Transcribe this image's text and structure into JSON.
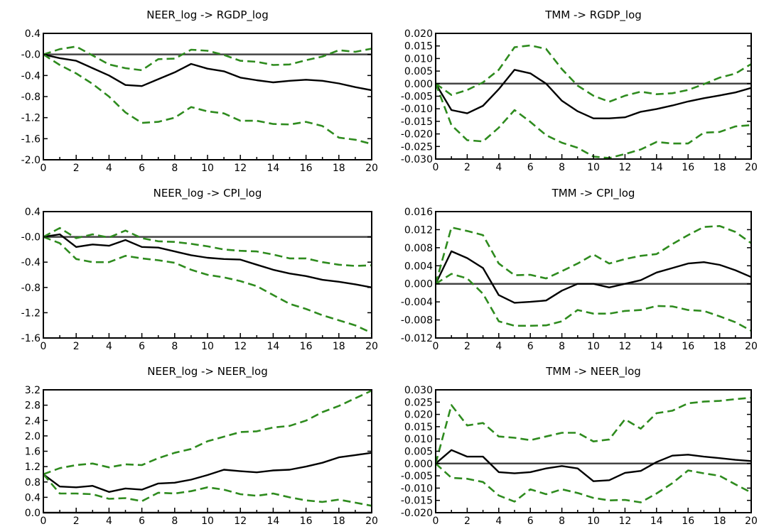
{
  "chart_data": [
    {
      "type": "line",
      "title": "NEER_log  -> RGDP_log",
      "x": [
        0,
        1,
        2,
        3,
        4,
        5,
        6,
        7,
        8,
        9,
        10,
        11,
        12,
        13,
        14,
        15,
        16,
        17,
        18,
        19,
        20
      ],
      "xticks": [
        "0",
        "2",
        "4",
        "6",
        "8",
        "10",
        "12",
        "14",
        "16",
        "18",
        "20"
      ],
      "ylim": [
        -2.0,
        0.4
      ],
      "yticks": [
        "0.4",
        "-0.0",
        "-0.4",
        "-0.8",
        "-1.2",
        "-1.6",
        "-2.0"
      ],
      "ytick_values": [
        0.4,
        0,
        -0.4,
        -0.8,
        -1.2,
        -1.6,
        -2.0
      ],
      "series": [
        {
          "role": "response",
          "values": [
            0.0,
            -0.07,
            -0.12,
            -0.26,
            -0.4,
            -0.58,
            -0.6,
            -0.47,
            -0.34,
            -0.18,
            -0.27,
            -0.32,
            -0.44,
            -0.49,
            -0.53,
            -0.5,
            -0.48,
            -0.5,
            -0.55,
            -0.62,
            -0.68
          ],
          "color": "#000000"
        },
        {
          "role": "upper",
          "values": [
            0.0,
            0.1,
            0.15,
            -0.02,
            -0.19,
            -0.26,
            -0.3,
            -0.09,
            -0.08,
            0.09,
            0.07,
            -0.01,
            -0.12,
            -0.14,
            -0.2,
            -0.19,
            -0.11,
            -0.04,
            0.08,
            0.05,
            0.11
          ],
          "color": "#2e8b1e"
        },
        {
          "role": "lower",
          "values": [
            0.0,
            -0.2,
            -0.36,
            -0.56,
            -0.8,
            -1.1,
            -1.3,
            -1.28,
            -1.2,
            -1.0,
            -1.08,
            -1.12,
            -1.26,
            -1.26,
            -1.32,
            -1.33,
            -1.28,
            -1.36,
            -1.58,
            -1.62,
            -1.7
          ],
          "color": "#2e8b1e"
        }
      ]
    },
    {
      "type": "line",
      "title": "TMM  -> RGDP_log",
      "x": [
        0,
        1,
        2,
        3,
        4,
        5,
        6,
        7,
        8,
        9,
        10,
        11,
        12,
        13,
        14,
        15,
        16,
        17,
        18,
        19,
        20
      ],
      "xticks": [
        "0",
        "2",
        "4",
        "6",
        "8",
        "10",
        "12",
        "14",
        "16",
        "18",
        "20"
      ],
      "ylim": [
        -0.03,
        0.02
      ],
      "yticks": [
        "0.020",
        "0.015",
        "0.010",
        "0.005",
        "0.000",
        "-0.005",
        "-0.010",
        "-0.015",
        "-0.020",
        "-0.025",
        "-0.030"
      ],
      "ytick_values": [
        0.02,
        0.015,
        0.01,
        0.005,
        0,
        -0.005,
        -0.01,
        -0.015,
        -0.02,
        -0.025,
        -0.03
      ],
      "series": [
        {
          "role": "response",
          "values": [
            0.0,
            -0.0105,
            -0.0118,
            -0.0088,
            -0.0022,
            0.0055,
            0.0041,
            0.0,
            -0.0068,
            -0.011,
            -0.0138,
            -0.0138,
            -0.0134,
            -0.0112,
            -0.0101,
            -0.0087,
            -0.0071,
            -0.0058,
            -0.0047,
            -0.0035,
            -0.0017
          ],
          "color": "#000000"
        },
        {
          "role": "upper",
          "values": [
            0.0,
            -0.0045,
            -0.0025,
            0.0005,
            0.0055,
            0.0145,
            0.0152,
            0.0138,
            0.0058,
            -0.0008,
            -0.0048,
            -0.0072,
            -0.0048,
            -0.0032,
            -0.0042,
            -0.0038,
            -0.0025,
            -0.0002,
            0.0024,
            0.004,
            0.0078
          ],
          "color": "#2e8b1e"
        },
        {
          "role": "lower",
          "values": [
            0.0,
            -0.0165,
            -0.0225,
            -0.023,
            -0.0175,
            -0.0105,
            -0.0152,
            -0.0205,
            -0.0235,
            -0.0255,
            -0.029,
            -0.0296,
            -0.028,
            -0.0262,
            -0.0232,
            -0.0238,
            -0.0238,
            -0.0195,
            -0.0192,
            -0.017,
            -0.0165
          ],
          "color": "#2e8b1e"
        }
      ]
    },
    {
      "type": "line",
      "title": "NEER_log  -> CPI_log",
      "x": [
        0,
        1,
        2,
        3,
        4,
        5,
        6,
        7,
        8,
        9,
        10,
        11,
        12,
        13,
        14,
        15,
        16,
        17,
        18,
        19,
        20
      ],
      "xticks": [
        "0",
        "2",
        "4",
        "6",
        "8",
        "10",
        "12",
        "14",
        "16",
        "18",
        "20"
      ],
      "ylim": [
        -1.6,
        0.4
      ],
      "yticks": [
        "0.4",
        "-0.0",
        "-0.4",
        "-0.8",
        "-1.2",
        "-1.6"
      ],
      "ytick_values": [
        0.4,
        0,
        -0.4,
        -0.8,
        -1.2,
        -1.6
      ],
      "series": [
        {
          "role": "response",
          "values": [
            0.0,
            0.04,
            -0.16,
            -0.12,
            -0.14,
            -0.05,
            -0.16,
            -0.17,
            -0.23,
            -0.29,
            -0.33,
            -0.35,
            -0.36,
            -0.44,
            -0.52,
            -0.58,
            -0.62,
            -0.68,
            -0.71,
            -0.75,
            -0.8
          ],
          "color": "#000000"
        },
        {
          "role": "upper",
          "values": [
            0.0,
            0.14,
            -0.02,
            0.04,
            -0.01,
            0.1,
            -0.02,
            -0.07,
            -0.08,
            -0.11,
            -0.15,
            -0.2,
            -0.22,
            -0.23,
            -0.28,
            -0.34,
            -0.34,
            -0.4,
            -0.44,
            -0.46,
            -0.45
          ],
          "color": "#2e8b1e"
        },
        {
          "role": "lower",
          "values": [
            0.0,
            -0.1,
            -0.35,
            -0.4,
            -0.4,
            -0.3,
            -0.34,
            -0.37,
            -0.41,
            -0.52,
            -0.6,
            -0.64,
            -0.7,
            -0.78,
            -0.92,
            -1.06,
            -1.14,
            -1.24,
            -1.32,
            -1.4,
            -1.52
          ],
          "color": "#2e8b1e"
        }
      ]
    },
    {
      "type": "line",
      "title": "TMM  -> CPI_log",
      "x": [
        0,
        1,
        2,
        3,
        4,
        5,
        6,
        7,
        8,
        9,
        10,
        11,
        12,
        13,
        14,
        15,
        16,
        17,
        18,
        19,
        20
      ],
      "xticks": [
        "0",
        "2",
        "4",
        "6",
        "8",
        "10",
        "12",
        "14",
        "16",
        "18",
        "20"
      ],
      "ylim": [
        -0.012,
        0.016
      ],
      "yticks": [
        "0.016",
        "0.012",
        "0.008",
        "0.004",
        "0.000",
        "-0.004",
        "-0.008",
        "-0.012"
      ],
      "ytick_values": [
        0.016,
        0.012,
        0.008,
        0.004,
        0,
        -0.004,
        -0.008,
        -0.012
      ],
      "series": [
        {
          "role": "response",
          "values": [
            0.0,
            0.0072,
            0.0057,
            0.0035,
            -0.0025,
            -0.0042,
            -0.004,
            -0.0037,
            -0.0015,
            0.0,
            0.0,
            -0.0008,
            0.0,
            0.0008,
            0.0025,
            0.0035,
            0.0045,
            0.0048,
            0.0042,
            0.003,
            0.0015
          ],
          "color": "#000000"
        },
        {
          "role": "upper",
          "values": [
            0.0,
            0.0125,
            0.0117,
            0.0108,
            0.0045,
            0.0019,
            0.002,
            0.0012,
            0.0028,
            0.0045,
            0.0065,
            0.0045,
            0.0055,
            0.0062,
            0.0066,
            0.0088,
            0.0108,
            0.0126,
            0.0128,
            0.0115,
            0.009
          ],
          "color": "#2e8b1e"
        },
        {
          "role": "lower",
          "values": [
            0.0,
            0.0022,
            0.0012,
            -0.0022,
            -0.0083,
            -0.0093,
            -0.0093,
            -0.0092,
            -0.0083,
            -0.0058,
            -0.0066,
            -0.0066,
            -0.006,
            -0.0058,
            -0.0049,
            -0.005,
            -0.0058,
            -0.006,
            -0.0072,
            -0.0085,
            -0.0104
          ],
          "color": "#2e8b1e"
        }
      ]
    },
    {
      "type": "line",
      "title": "NEER_log  -> NEER_log",
      "x": [
        0,
        1,
        2,
        3,
        4,
        5,
        6,
        7,
        8,
        9,
        10,
        11,
        12,
        13,
        14,
        15,
        16,
        17,
        18,
        19,
        20
      ],
      "xticks": [
        "0",
        "2",
        "4",
        "6",
        "8",
        "10",
        "12",
        "14",
        "16",
        "18",
        "20"
      ],
      "ylim": [
        0.0,
        3.2
      ],
      "yticks": [
        "3.2",
        "2.8",
        "2.4",
        "2.0",
        "1.6",
        "1.2",
        "0.8",
        "0.4",
        "0.0"
      ],
      "ytick_values": [
        3.2,
        2.8,
        2.4,
        2.0,
        1.6,
        1.2,
        0.8,
        0.4,
        0
      ],
      "series": [
        {
          "role": "response",
          "values": [
            1.0,
            0.68,
            0.66,
            0.7,
            0.54,
            0.63,
            0.6,
            0.76,
            0.78,
            0.86,
            0.98,
            1.12,
            1.08,
            1.05,
            1.1,
            1.12,
            1.2,
            1.3,
            1.44,
            1.5,
            1.56
          ],
          "color": "#000000"
        },
        {
          "role": "upper",
          "values": [
            1.0,
            1.16,
            1.24,
            1.28,
            1.18,
            1.26,
            1.24,
            1.42,
            1.56,
            1.66,
            1.86,
            1.98,
            2.1,
            2.12,
            2.22,
            2.26,
            2.4,
            2.62,
            2.78,
            2.98,
            3.18
          ],
          "color": "#2e8b1e"
        },
        {
          "role": "lower",
          "values": [
            1.0,
            0.5,
            0.5,
            0.48,
            0.36,
            0.38,
            0.3,
            0.52,
            0.5,
            0.56,
            0.66,
            0.6,
            0.48,
            0.44,
            0.5,
            0.4,
            0.32,
            0.28,
            0.34,
            0.26,
            0.18
          ],
          "color": "#2e8b1e"
        }
      ]
    },
    {
      "type": "line",
      "title": "TMM  -> NEER_log",
      "x": [
        0,
        1,
        2,
        3,
        4,
        5,
        6,
        7,
        8,
        9,
        10,
        11,
        12,
        13,
        14,
        15,
        16,
        17,
        18,
        19,
        20
      ],
      "xticks": [
        "0",
        "2",
        "4",
        "6",
        "8",
        "10",
        "12",
        "14",
        "16",
        "18",
        "20"
      ],
      "ylim": [
        -0.02,
        0.03
      ],
      "yticks": [
        "0.030",
        "0.025",
        "0.020",
        "0.015",
        "0.010",
        "0.005",
        "0.000",
        "-0.005",
        "-0.010",
        "-0.015",
        "-0.020"
      ],
      "ytick_values": [
        0.03,
        0.025,
        0.02,
        0.015,
        0.01,
        0.005,
        0,
        -0.005,
        -0.01,
        -0.015,
        -0.02
      ],
      "series": [
        {
          "role": "response",
          "values": [
            0.0,
            0.0055,
            0.0028,
            0.0028,
            -0.0035,
            -0.004,
            -0.0035,
            -0.002,
            -0.001,
            -0.002,
            -0.0072,
            -0.0068,
            -0.0038,
            -0.003,
            0.0006,
            0.0032,
            0.0036,
            0.0028,
            0.0022,
            0.0015,
            0.001
          ],
          "color": "#000000"
        },
        {
          "role": "upper",
          "values": [
            0.0,
            0.0238,
            0.0155,
            0.0165,
            0.011,
            0.0105,
            0.0095,
            0.011,
            0.0125,
            0.0125,
            0.009,
            0.0098,
            0.018,
            0.0142,
            0.0205,
            0.0215,
            0.0245,
            0.0252,
            0.0255,
            0.0262,
            0.0268
          ],
          "color": "#2e8b1e"
        },
        {
          "role": "lower",
          "values": [
            0.0,
            -0.0058,
            -0.0062,
            -0.0075,
            -0.013,
            -0.0155,
            -0.0105,
            -0.0125,
            -0.0105,
            -0.012,
            -0.014,
            -0.015,
            -0.0148,
            -0.0158,
            -0.0122,
            -0.008,
            -0.0028,
            -0.004,
            -0.005,
            -0.0085,
            -0.0118
          ],
          "color": "#2e8b1e"
        }
      ]
    }
  ]
}
